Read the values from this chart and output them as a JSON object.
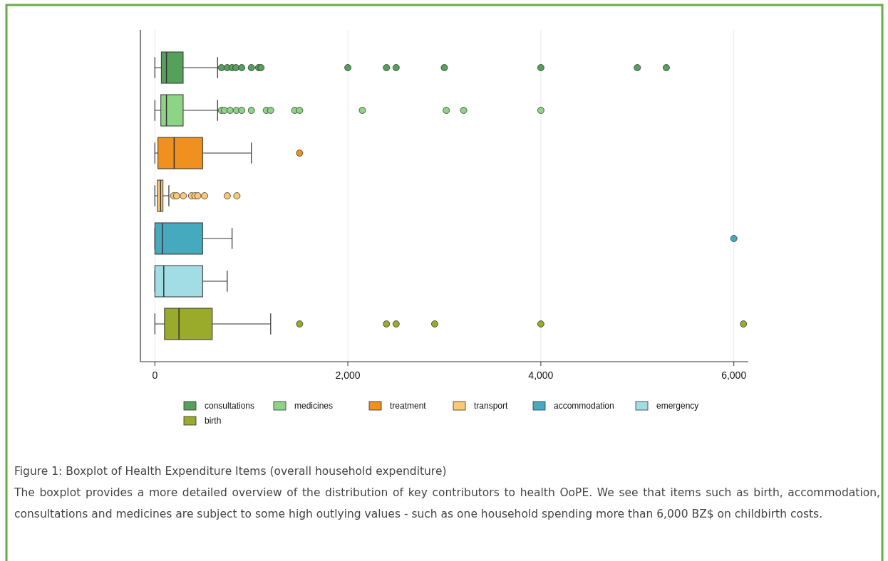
{
  "chart_data": {
    "type": "box",
    "orientation": "horizontal",
    "title": "Figure 1: Boxplot of Health Expenditure Items (overall household expenditure)",
    "annotations": [
      "The boxplot provides a more detailed overview of the distribution of key contributors to health OoPE. We see that items such as birth, accommodation, consultations and medicines are subject to some high outlying values - such as one household spending more than 6,000 BZ$ on childbirth costs."
    ],
    "categories": [
      null
    ],
    "xlim": [
      -150,
      6150
    ],
    "xticks": [
      0,
      {
        "value": 2000,
        "label": "2,000"
      },
      {
        "value": 4000,
        "label": "4,000"
      },
      {
        "value": 6000,
        "label": "6,000"
      }
    ],
    "grid": "x",
    "legend": "bottom",
    "series": [
      {
        "name": "consultations",
        "color": "#55a05a",
        "boxes": [
          {
            "low": 0,
            "q1": 67,
            "median": 120,
            "q3": 293,
            "high": 650,
            "outliers": [
              690,
              750,
              800,
              840,
              900,
              1000,
              1075,
              1100,
              2000,
              2400,
              2500,
              3000,
              4000,
              5000,
              5300
            ]
          }
        ]
      },
      {
        "name": "medicines",
        "color": "#8ed487",
        "boxes": [
          {
            "low": 0,
            "q1": 62,
            "median": 120,
            "q3": 293,
            "high": 650,
            "outliers": [
              690,
              720,
              780,
              845,
              900,
              1000,
              1155,
              1200,
              1450,
              1500,
              2150,
              3020,
              3200,
              4000
            ]
          }
        ]
      },
      {
        "name": "treatment",
        "color": "#f0901e",
        "boxes": [
          {
            "low": 0,
            "q1": 32,
            "median": 200,
            "q3": 495,
            "high": 1000,
            "outliers": [
              1500
            ]
          }
        ]
      },
      {
        "name": "transport",
        "color": "#fcc874",
        "boxes": [
          {
            "low": 0,
            "q1": 27,
            "median": 59,
            "q3": 84,
            "high": 145,
            "outliers": [
              195,
              225,
              295,
              380,
              415,
              445,
              515,
              750,
              850
            ]
          }
        ]
      },
      {
        "name": "accommodation",
        "color": "#46aabf",
        "boxes": [
          {
            "low": 0,
            "q1": 0,
            "median": 77,
            "q3": 495,
            "high": 800,
            "outliers": [
              6000
            ]
          }
        ]
      },
      {
        "name": "emergency",
        "color": "#a2dde6",
        "boxes": [
          {
            "low": 0,
            "q1": 0,
            "median": 92,
            "q3": 495,
            "high": 750
          }
        ]
      },
      {
        "name": "birth",
        "color": "#9aab2c",
        "boxes": [
          {
            "low": 0,
            "q1": 100,
            "median": 250,
            "q3": 595,
            "high": 1200,
            "outliers": [
              1500,
              2400,
              2500,
              2900,
              4000,
              6100
            ]
          }
        ]
      }
    ]
  }
}
